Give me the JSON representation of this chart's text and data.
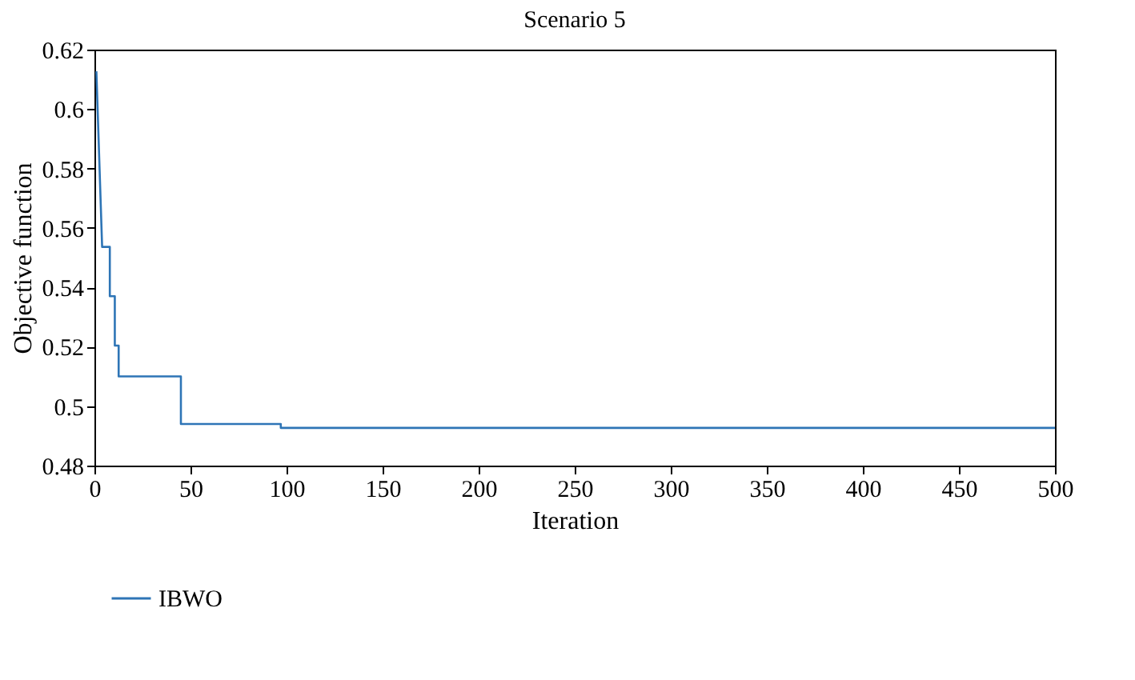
{
  "chart_data": {
    "type": "line",
    "title": "Scenario 5",
    "xlabel": "Iteration",
    "ylabel": "Objective function",
    "x": [
      1,
      4,
      8,
      8,
      10.6,
      10.6,
      12.6,
      12.6,
      45,
      45,
      97,
      97,
      500
    ],
    "series": [
      {
        "name": "IBWO",
        "color": "#2e75b6",
        "values": [
          0.6127,
          0.5536,
          0.5536,
          0.537,
          0.537,
          0.5204,
          0.5204,
          0.51,
          0.51,
          0.494,
          0.494,
          0.4927,
          0.4927
        ]
      }
    ],
    "xlim": [
      0,
      500
    ],
    "xticks": [
      0,
      50,
      100,
      150,
      200,
      250,
      300,
      350,
      400,
      450,
      500
    ],
    "ylim": [
      0.48,
      0.62
    ],
    "yticks": [
      0.48,
      0.5,
      0.52,
      0.54,
      0.56,
      0.58,
      0.6,
      0.62
    ],
    "grid": false,
    "legend": "bottom left",
    "marker": "none",
    "line_style": "solid"
  }
}
